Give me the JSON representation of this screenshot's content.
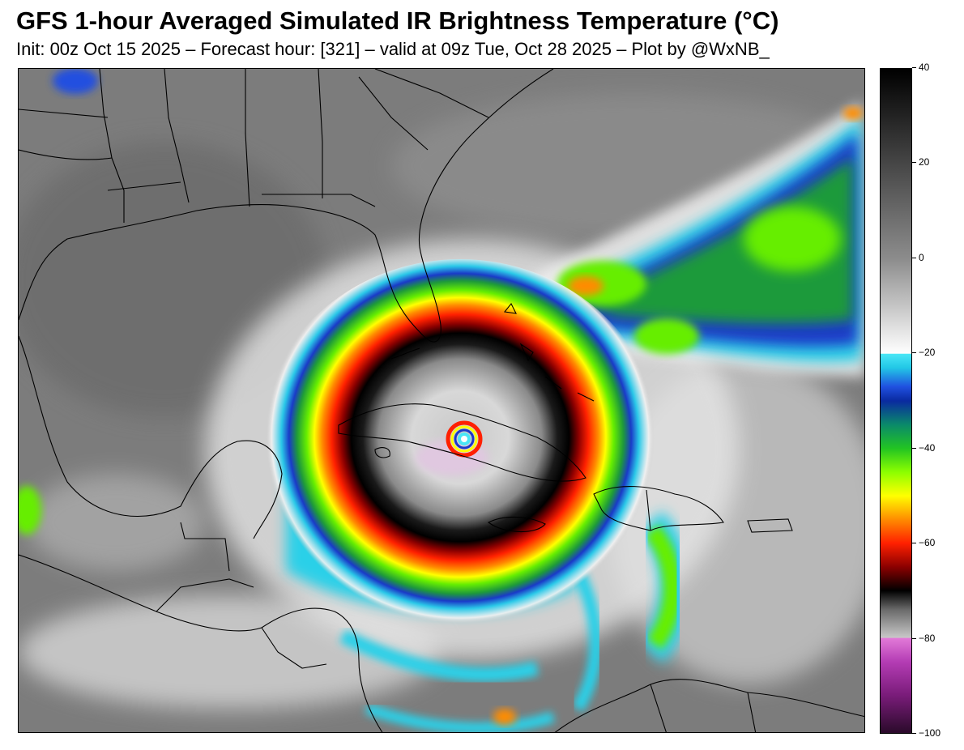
{
  "header": {
    "title": "GFS 1-hour Averaged Simulated IR Brightness Temperature (°C)",
    "subtitle": "Init: 00z Oct 15 2025 – Forecast hour: [321] – valid at 09z Tue, Oct 28 2025 – Plot by @WxNB_"
  },
  "colorbar": {
    "vmin": -100,
    "vmax": 40,
    "ticks": [
      {
        "value": 40,
        "label": "40"
      },
      {
        "value": 20,
        "label": "20"
      },
      {
        "value": 0,
        "label": "0"
      },
      {
        "value": -20,
        "label": "−20"
      },
      {
        "value": -40,
        "label": "−40"
      },
      {
        "value": -60,
        "label": "−60"
      },
      {
        "value": -80,
        "label": "−80"
      },
      {
        "value": -100,
        "label": "−100"
      }
    ],
    "stops": [
      {
        "value": -100,
        "color": "#2a0a2a"
      },
      {
        "value": -92,
        "color": "#7a1c7a"
      },
      {
        "value": -85,
        "color": "#b43cb4"
      },
      {
        "value": -80,
        "color": "#e27ad8"
      },
      {
        "value": -79.9,
        "color": "#c8c8c8"
      },
      {
        "value": -74,
        "color": "#6a6a6a"
      },
      {
        "value": -70,
        "color": "#000000"
      },
      {
        "value": -65,
        "color": "#8b0000"
      },
      {
        "value": -60,
        "color": "#ff2000"
      },
      {
        "value": -55,
        "color": "#ff8c00"
      },
      {
        "value": -50,
        "color": "#ffff00"
      },
      {
        "value": -45,
        "color": "#8cff00"
      },
      {
        "value": -40,
        "color": "#22c422"
      },
      {
        "value": -35,
        "color": "#0a8a6a"
      },
      {
        "value": -30,
        "color": "#0a2aa0"
      },
      {
        "value": -27,
        "color": "#2050e0"
      },
      {
        "value": -23,
        "color": "#22c8e6"
      },
      {
        "value": -20.1,
        "color": "#4ae6f6"
      },
      {
        "value": -20,
        "color": "#ffffff"
      },
      {
        "value": 0,
        "color": "#8c8c8c"
      },
      {
        "value": 40,
        "color": "#000000"
      }
    ]
  }
}
